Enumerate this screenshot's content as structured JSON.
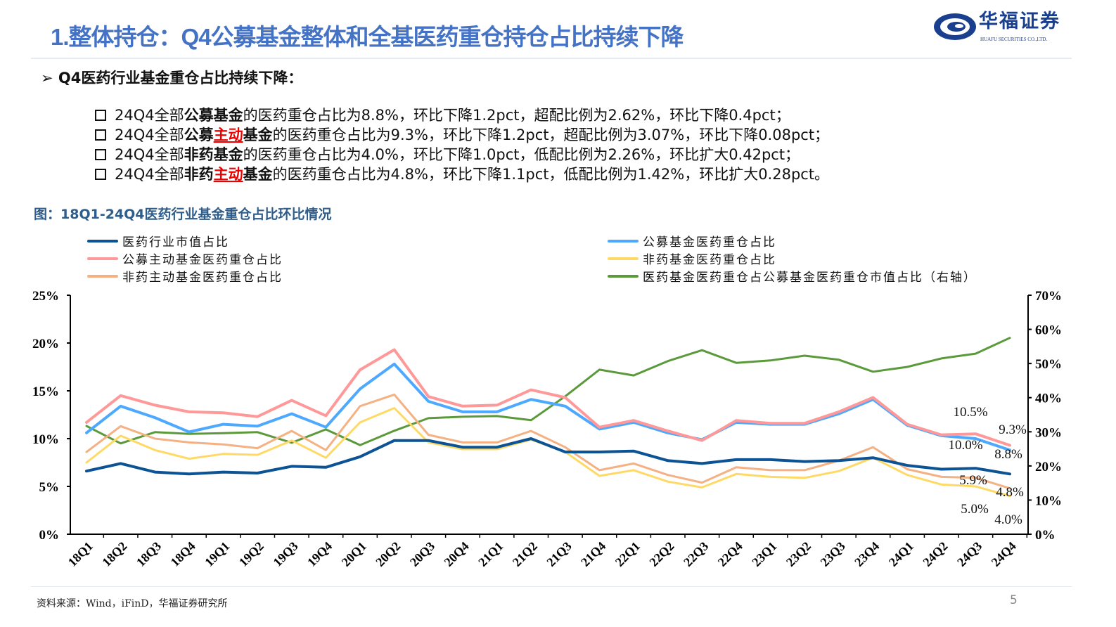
{
  "header": {
    "title": "1.整体持仓：Q4公募基金整体和全基医药重仓持仓占比持续下降",
    "logo_cn": "华福证券",
    "logo_en": "HUAFU SECURITIES CO.,LTD."
  },
  "section": {
    "marker": "➢",
    "heading": "Q4医药行业基金重仓占比持续下降："
  },
  "bullets": [
    [
      {
        "t": "24Q4全部",
        "s": ""
      },
      {
        "t": "公募基金",
        "s": "b"
      },
      {
        "t": "的医药重仓占比为8.8%，环比下降1.2pct，超配比例为2.62%，环比下降0.4pct；",
        "s": ""
      }
    ],
    [
      {
        "t": "24Q4全部",
        "s": ""
      },
      {
        "t": "公募",
        "s": "b"
      },
      {
        "t": "主动",
        "s": "r"
      },
      {
        "t": "基金",
        "s": "b"
      },
      {
        "t": "的医药重仓占比为9.3%，环比下降1.2pct，超配比例为3.07%，环比下降0.08pct；",
        "s": ""
      }
    ],
    [
      {
        "t": "24Q4全部",
        "s": ""
      },
      {
        "t": "非药基金",
        "s": "b"
      },
      {
        "t": "的医药重仓占比为4.0%，环比下降1.0pct，低配比例为2.26%，环比扩大0.42pct；",
        "s": ""
      }
    ],
    [
      {
        "t": "24Q4全部",
        "s": ""
      },
      {
        "t": "非药",
        "s": "b"
      },
      {
        "t": "主动",
        "s": "r"
      },
      {
        "t": "基金",
        "s": "b"
      },
      {
        "t": "的医药重仓占比为4.8%，环比下降1.1pct，低配比例为1.42%，环比扩大0.28pct。",
        "s": ""
      }
    ]
  ],
  "figure_title": "图：18Q1-24Q4医药行业基金重仓占比环比情况",
  "source": "资料来源：Wind，iFinD，华福证券研究所",
  "page_number": "5",
  "chart_data": {
    "type": "line",
    "categories": [
      "18Q1",
      "18Q2",
      "18Q3",
      "18Q4",
      "19Q1",
      "19Q2",
      "19Q3",
      "19Q4",
      "20Q1",
      "20Q2",
      "20Q3",
      "20Q4",
      "21Q1",
      "21Q2",
      "21Q3",
      "21Q4",
      "22Q1",
      "22Q2",
      "22Q3",
      "22Q4",
      "23Q1",
      "23Q2",
      "23Q3",
      "23Q4",
      "24Q1",
      "24Q2",
      "24Q3",
      "24Q4"
    ],
    "y_left": {
      "range": [
        0,
        25
      ],
      "ticks": [
        "0%",
        "5%",
        "10%",
        "15%",
        "20%",
        "25%"
      ]
    },
    "y_right": {
      "range": [
        0,
        70
      ],
      "ticks": [
        "0%",
        "10%",
        "20%",
        "30%",
        "40%",
        "50%",
        "60%",
        "70%"
      ]
    },
    "grid": false,
    "legend_position": "top",
    "series": [
      {
        "name": "医药行业市值占比",
        "color": "#0B5394",
        "axis": "left",
        "width": 4,
        "values": [
          6.6,
          7.4,
          6.5,
          6.3,
          6.5,
          6.4,
          7.1,
          7.0,
          8.1,
          9.8,
          9.8,
          9.1,
          9.1,
          10.0,
          8.6,
          8.6,
          8.7,
          7.7,
          7.4,
          7.8,
          7.8,
          7.6,
          7.7,
          8.0,
          7.2,
          6.8,
          6.9,
          6.3
        ]
      },
      {
        "name": "公募基金医药重仓占比",
        "color": "#4DA9FF",
        "axis": "left",
        "width": 4,
        "values": [
          10.6,
          13.4,
          12.2,
          10.7,
          11.5,
          11.3,
          12.6,
          11.2,
          15.2,
          17.8,
          13.9,
          12.8,
          12.8,
          14.1,
          13.4,
          11.0,
          11.7,
          10.6,
          9.9,
          11.7,
          11.5,
          11.5,
          12.6,
          14.1,
          11.4,
          10.3,
          10.0,
          8.8
        ]
      },
      {
        "name": "公募主动基金医药重仓占比",
        "color": "#FF9999",
        "axis": "left",
        "width": 4,
        "values": [
          11.7,
          14.5,
          13.5,
          12.8,
          12.7,
          12.3,
          14.0,
          12.4,
          17.2,
          19.3,
          14.4,
          13.4,
          13.5,
          15.1,
          14.3,
          11.2,
          11.9,
          10.8,
          9.8,
          11.9,
          11.6,
          11.6,
          12.8,
          14.3,
          11.5,
          10.4,
          10.5,
          9.3
        ]
      },
      {
        "name": "非药基金医药重仓占比",
        "color": "#FFD966",
        "axis": "left",
        "width": 3,
        "values": [
          7.5,
          10.3,
          8.8,
          7.9,
          8.4,
          8.3,
          9.8,
          8.0,
          11.7,
          13.2,
          9.6,
          8.9,
          8.9,
          9.9,
          8.6,
          6.1,
          6.7,
          5.5,
          4.9,
          6.3,
          6.0,
          5.9,
          6.6,
          8.0,
          6.2,
          5.2,
          5.0,
          4.0
        ]
      },
      {
        "name": "非药主动基金医药重仓占比",
        "color": "#F4B183",
        "axis": "left",
        "width": 3,
        "values": [
          8.6,
          11.3,
          10.0,
          9.6,
          9.4,
          9.0,
          10.8,
          8.8,
          13.4,
          14.6,
          10.4,
          9.6,
          9.6,
          10.8,
          9.1,
          6.7,
          7.4,
          6.2,
          5.4,
          7.0,
          6.7,
          6.7,
          7.7,
          9.1,
          6.8,
          6.0,
          5.9,
          4.8
        ]
      },
      {
        "name": "医药基金医药重仓占公募基金医药重仓市值占比（右轴）",
        "color": "#5B9A3A",
        "axis": "right",
        "width": 3,
        "values": [
          31.7,
          26.6,
          29.9,
          29.4,
          29.6,
          29.9,
          26.8,
          30.7,
          26.1,
          30.3,
          34.0,
          34.4,
          34.6,
          33.4,
          40.4,
          48.2,
          46.5,
          50.7,
          53.9,
          50.2,
          50.9,
          52.3,
          51.1,
          47.6,
          49.0,
          51.5,
          52.9,
          57.5
        ]
      }
    ],
    "data_labels": [
      {
        "text": "10.5%",
        "category": "24Q3",
        "series": "公募主动基金医药重仓占比"
      },
      {
        "text": "9.3%",
        "category": "24Q4",
        "series": "公募主动基金医药重仓占比"
      },
      {
        "text": "10.0%",
        "category": "24Q3",
        "series": "公募基金医药重仓占比"
      },
      {
        "text": "8.8%",
        "category": "24Q4",
        "series": "公募基金医药重仓占比"
      },
      {
        "text": "5.9%",
        "category": "24Q3",
        "series": "非药主动基金医药重仓占比"
      },
      {
        "text": "4.8%",
        "category": "24Q4",
        "series": "非药主动基金医药重仓占比"
      },
      {
        "text": "5.0%",
        "category": "24Q3",
        "series": "非药基金医药重仓占比"
      },
      {
        "text": "4.0%",
        "category": "24Q4",
        "series": "非药基金医药重仓占比"
      }
    ]
  }
}
